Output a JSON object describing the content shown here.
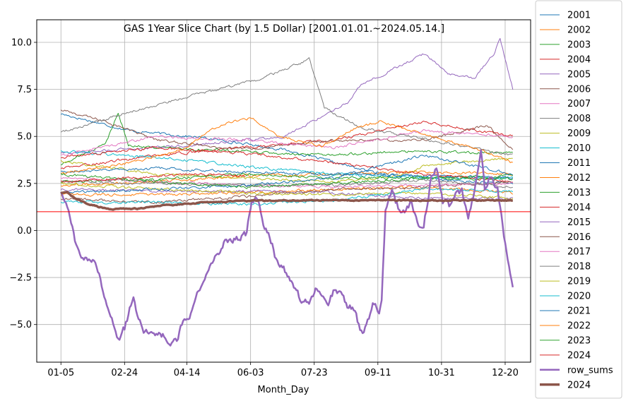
{
  "chart_data": {
    "type": "line",
    "title": "GAS 1Year Slice Chart (by 1.5 Dollar) [2001.01.01.~2024.05.14.]",
    "xlabel": "Month_Day",
    "ylabel": "",
    "x_tick_labels": [
      "01-05",
      "02-24",
      "04-14",
      "06-03",
      "07-23",
      "09-11",
      "10-31",
      "12-20"
    ],
    "x_tick_days": [
      5,
      55,
      104,
      154,
      204,
      254,
      304,
      354
    ],
    "xlim": [
      -14,
      374
    ],
    "y_ticks": [
      -5.0,
      -2.5,
      0.0,
      2.5,
      5.0,
      7.5,
      10.0
    ],
    "y_tick_labels": [
      "−5.0",
      "−2.5",
      "0.0",
      "2.5",
      "5.0",
      "7.5",
      "10.0"
    ],
    "ylim": [
      -7.0,
      11.2
    ],
    "grid": true,
    "reference_line": {
      "y": 1.0,
      "color": "#ff0000"
    },
    "legend_position": "outside-right",
    "series": [
      {
        "name": "2001",
        "color": "#1f77b4",
        "width": 1,
        "keypoints": [
          [
            5,
            6.2
          ],
          [
            60,
            5.3
          ],
          [
            120,
            4.9
          ],
          [
            180,
            4.3
          ],
          [
            250,
            3.1
          ],
          [
            320,
            2.6
          ],
          [
            360,
            2.5
          ]
        ]
      },
      {
        "name": "2002",
        "color": "#ff7f0e",
        "width": 1,
        "keypoints": [
          [
            5,
            2.4
          ],
          [
            80,
            2.6
          ],
          [
            150,
            2.9
          ],
          [
            220,
            3.0
          ],
          [
            290,
            3.1
          ],
          [
            360,
            3.0
          ]
        ]
      },
      {
        "name": "2003",
        "color": "#2ca02c",
        "width": 1,
        "keypoints": [
          [
            5,
            3.5
          ],
          [
            40,
            4.6
          ],
          [
            50,
            6.3
          ],
          [
            58,
            4.5
          ],
          [
            120,
            4.3
          ],
          [
            200,
            4.0
          ],
          [
            280,
            4.2
          ],
          [
            360,
            4.1
          ]
        ]
      },
      {
        "name": "2004",
        "color": "#d62728",
        "width": 1,
        "keypoints": [
          [
            5,
            3.3
          ],
          [
            80,
            4.0
          ],
          [
            150,
            4.4
          ],
          [
            220,
            4.8
          ],
          [
            290,
            5.8
          ],
          [
            360,
            5.0
          ]
        ]
      },
      {
        "name": "2005",
        "color": "#9467bd",
        "width": 1,
        "keypoints": [
          [
            5,
            4.1
          ],
          [
            100,
            4.5
          ],
          [
            180,
            5.0
          ],
          [
            230,
            6.8
          ],
          [
            240,
            7.7
          ],
          [
            270,
            8.7
          ],
          [
            290,
            9.4
          ],
          [
            310,
            8.3
          ],
          [
            330,
            8.1
          ],
          [
            345,
            9.4
          ],
          [
            350,
            10.2
          ],
          [
            360,
            7.5
          ]
        ]
      },
      {
        "name": "2006",
        "color": "#8c564b",
        "width": 1,
        "keypoints": [
          [
            5,
            6.4
          ],
          [
            40,
            5.8
          ],
          [
            80,
            4.8
          ],
          [
            150,
            4.3
          ],
          [
            220,
            4.8
          ],
          [
            290,
            4.8
          ],
          [
            340,
            5.6
          ],
          [
            360,
            4.3
          ]
        ]
      },
      {
        "name": "2007",
        "color": "#e377c2",
        "width": 1,
        "keypoints": [
          [
            5,
            4.0
          ],
          [
            80,
            5.0
          ],
          [
            150,
            4.8
          ],
          [
            220,
            4.4
          ],
          [
            290,
            5.3
          ],
          [
            360,
            5.0
          ]
        ]
      },
      {
        "name": "2008",
        "color": "#7f7f7f",
        "width": 1,
        "keypoints": [
          [
            5,
            5.2
          ],
          [
            60,
            6.3
          ],
          [
            110,
            7.2
          ],
          [
            160,
            8.0
          ],
          [
            190,
            8.8
          ],
          [
            200,
            9.1
          ],
          [
            212,
            6.5
          ],
          [
            240,
            5.5
          ],
          [
            280,
            5.0
          ],
          [
            360,
            4.0
          ]
        ]
      },
      {
        "name": "2009",
        "color": "#bcbd22",
        "width": 1,
        "keypoints": [
          [
            5,
            3.7
          ],
          [
            80,
            3.0
          ],
          [
            150,
            2.8
          ],
          [
            220,
            2.6
          ],
          [
            270,
            2.9
          ],
          [
            290,
            3.4
          ],
          [
            360,
            3.9
          ]
        ]
      },
      {
        "name": "2010",
        "color": "#17becf",
        "width": 1,
        "keypoints": [
          [
            5,
            4.2
          ],
          [
            80,
            3.9
          ],
          [
            150,
            3.4
          ],
          [
            220,
            3.0
          ],
          [
            290,
            2.8
          ],
          [
            360,
            2.8
          ]
        ]
      },
      {
        "name": "2011",
        "color": "#1f77b4",
        "width": 1,
        "keypoints": [
          [
            5,
            3.1
          ],
          [
            80,
            3.3
          ],
          [
            150,
            3.1
          ],
          [
            220,
            3.0
          ],
          [
            290,
            2.9
          ],
          [
            360,
            2.8
          ]
        ]
      },
      {
        "name": "2012",
        "color": "#ff7f0e",
        "width": 1,
        "keypoints": [
          [
            5,
            1.9
          ],
          [
            80,
            1.9
          ],
          [
            150,
            2.0
          ],
          [
            220,
            2.2
          ],
          [
            290,
            2.3
          ],
          [
            360,
            2.0
          ]
        ]
      },
      {
        "name": "2013",
        "color": "#2ca02c",
        "width": 1,
        "keypoints": [
          [
            5,
            2.6
          ],
          [
            80,
            2.7
          ],
          [
            150,
            3.0
          ],
          [
            220,
            2.8
          ],
          [
            290,
            2.8
          ],
          [
            360,
            2.9
          ]
        ]
      },
      {
        "name": "2014",
        "color": "#d62728",
        "width": 1,
        "keypoints": [
          [
            5,
            3.9
          ],
          [
            80,
            4.4
          ],
          [
            150,
            4.1
          ],
          [
            220,
            3.6
          ],
          [
            290,
            3.0
          ],
          [
            360,
            2.6
          ]
        ]
      },
      {
        "name": "2015",
        "color": "#9467bd",
        "width": 1,
        "keypoints": [
          [
            5,
            2.2
          ],
          [
            80,
            2.1
          ],
          [
            150,
            2.1
          ],
          [
            220,
            2.0
          ],
          [
            290,
            1.7
          ],
          [
            360,
            1.7
          ]
        ]
      },
      {
        "name": "2016",
        "color": "#8c564b",
        "width": 1,
        "keypoints": [
          [
            5,
            1.7
          ],
          [
            80,
            1.5
          ],
          [
            150,
            1.8
          ],
          [
            220,
            2.2
          ],
          [
            290,
            2.3
          ],
          [
            360,
            2.6
          ]
        ]
      },
      {
        "name": "2017",
        "color": "#e377c2",
        "width": 1,
        "keypoints": [
          [
            5,
            2.8
          ],
          [
            80,
            2.6
          ],
          [
            150,
            2.4
          ],
          [
            220,
            2.3
          ],
          [
            290,
            2.4
          ],
          [
            360,
            2.5
          ]
        ]
      },
      {
        "name": "2018",
        "color": "#7f7f7f",
        "width": 1,
        "keypoints": [
          [
            5,
            2.6
          ],
          [
            80,
            2.5
          ],
          [
            150,
            2.4
          ],
          [
            220,
            2.4
          ],
          [
            290,
            2.7
          ],
          [
            360,
            2.3
          ]
        ]
      },
      {
        "name": "2019",
        "color": "#bcbd22",
        "width": 1,
        "keypoints": [
          [
            5,
            2.5
          ],
          [
            80,
            2.2
          ],
          [
            150,
            2.0
          ],
          [
            220,
            1.9
          ],
          [
            290,
            2.0
          ],
          [
            360,
            1.7
          ]
        ]
      },
      {
        "name": "2020",
        "color": "#17becf",
        "width": 1,
        "keypoints": [
          [
            5,
            1.5
          ],
          [
            80,
            1.5
          ],
          [
            150,
            1.4
          ],
          [
            220,
            1.6
          ],
          [
            290,
            2.2
          ],
          [
            360,
            2.1
          ]
        ]
      },
      {
        "name": "2021",
        "color": "#1f77b4",
        "width": 1,
        "keypoints": [
          [
            5,
            2.0
          ],
          [
            80,
            2.2
          ],
          [
            150,
            2.4
          ],
          [
            220,
            2.8
          ],
          [
            290,
            4.0
          ],
          [
            360,
            3.0
          ]
        ]
      },
      {
        "name": "2022",
        "color": "#ff7f0e",
        "width": 1,
        "keypoints": [
          [
            5,
            3.0
          ],
          [
            60,
            3.6
          ],
          [
            100,
            4.3
          ],
          [
            130,
            5.6
          ],
          [
            155,
            6.0
          ],
          [
            175,
            5.0
          ],
          [
            210,
            4.5
          ],
          [
            235,
            5.4
          ],
          [
            255,
            5.8
          ],
          [
            290,
            5.1
          ],
          [
            330,
            4.4
          ],
          [
            360,
            3.6
          ]
        ]
      },
      {
        "name": "2023",
        "color": "#2ca02c",
        "width": 1,
        "keypoints": [
          [
            5,
            3.0
          ],
          [
            80,
            2.6
          ],
          [
            150,
            2.3
          ],
          [
            220,
            2.5
          ],
          [
            290,
            2.8
          ],
          [
            360,
            2.7
          ]
        ]
      },
      {
        "name": "2024",
        "color": "#d62728",
        "width": 1,
        "keypoints": [
          [
            5,
            2.6
          ],
          [
            60,
            2.8
          ],
          [
            110,
            3.0
          ],
          [
            150,
            2.9
          ]
        ]
      },
      {
        "name": "row_sums",
        "color": "#9467bd",
        "width": 2.5,
        "keypoints": [
          [
            5,
            1.9
          ],
          [
            10,
            1.3
          ],
          [
            15,
            -0.3
          ],
          [
            20,
            -1.4
          ],
          [
            30,
            -1.5
          ],
          [
            40,
            -3.5
          ],
          [
            45,
            -4.8
          ],
          [
            50,
            -5.8
          ],
          [
            55,
            -5.2
          ],
          [
            60,
            -4.0
          ],
          [
            62,
            -3.5
          ],
          [
            65,
            -4.5
          ],
          [
            70,
            -5.5
          ],
          [
            80,
            -5.4
          ],
          [
            90,
            -5.8
          ],
          [
            97,
            -5.9
          ],
          [
            100,
            -5.0
          ],
          [
            105,
            -4.5
          ],
          [
            110,
            -4.0
          ],
          [
            115,
            -3.0
          ],
          [
            120,
            -2.3
          ],
          [
            125,
            -1.5
          ],
          [
            130,
            -1.1
          ],
          [
            135,
            -0.5
          ],
          [
            140,
            -0.6
          ],
          [
            150,
            -0.3
          ],
          [
            155,
            1.5
          ],
          [
            160,
            1.7
          ],
          [
            165,
            0.2
          ],
          [
            170,
            -0.5
          ],
          [
            175,
            -1.8
          ],
          [
            180,
            -2.0
          ],
          [
            185,
            -2.5
          ],
          [
            190,
            -3.3
          ],
          [
            195,
            -3.8
          ],
          [
            200,
            -3.8
          ],
          [
            205,
            -3.2
          ],
          [
            210,
            -3.5
          ],
          [
            215,
            -3.9
          ],
          [
            220,
            -3.2
          ],
          [
            225,
            -3.4
          ],
          [
            230,
            -4.0
          ],
          [
            235,
            -4.2
          ],
          [
            238,
            -4.8
          ],
          [
            242,
            -5.6
          ],
          [
            245,
            -4.8
          ],
          [
            250,
            -4.0
          ],
          [
            255,
            -4.3
          ],
          [
            257,
            -3.5
          ],
          [
            260,
            1.0
          ],
          [
            265,
            2.1
          ],
          [
            270,
            1.2
          ],
          [
            275,
            0.9
          ],
          [
            280,
            1.5
          ],
          [
            285,
            0.5
          ],
          [
            290,
            0.0
          ],
          [
            295,
            2.6
          ],
          [
            300,
            3.5
          ],
          [
            305,
            1.6
          ],
          [
            310,
            1.3
          ],
          [
            315,
            2.0
          ],
          [
            320,
            2.1
          ],
          [
            325,
            0.8
          ],
          [
            330,
            2.2
          ],
          [
            335,
            4.5
          ],
          [
            338,
            2.1
          ],
          [
            342,
            2.8
          ],
          [
            348,
            2.3
          ],
          [
            352,
            0.3
          ],
          [
            356,
            -1.7
          ],
          [
            360,
            -3.0
          ]
        ]
      },
      {
        "name": "2024",
        "color": "#8c564b",
        "width": 3.5,
        "keypoints": [
          [
            5,
            1.95
          ],
          [
            10,
            2.05
          ],
          [
            15,
            1.75
          ],
          [
            25,
            1.45
          ],
          [
            35,
            1.25
          ],
          [
            45,
            1.1
          ],
          [
            55,
            1.15
          ],
          [
            65,
            1.15
          ],
          [
            80,
            1.3
          ],
          [
            100,
            1.4
          ],
          [
            120,
            1.5
          ],
          [
            140,
            1.55
          ],
          [
            160,
            1.58
          ],
          [
            200,
            1.6
          ],
          [
            250,
            1.6
          ],
          [
            300,
            1.6
          ],
          [
            360,
            1.6
          ]
        ]
      }
    ]
  }
}
